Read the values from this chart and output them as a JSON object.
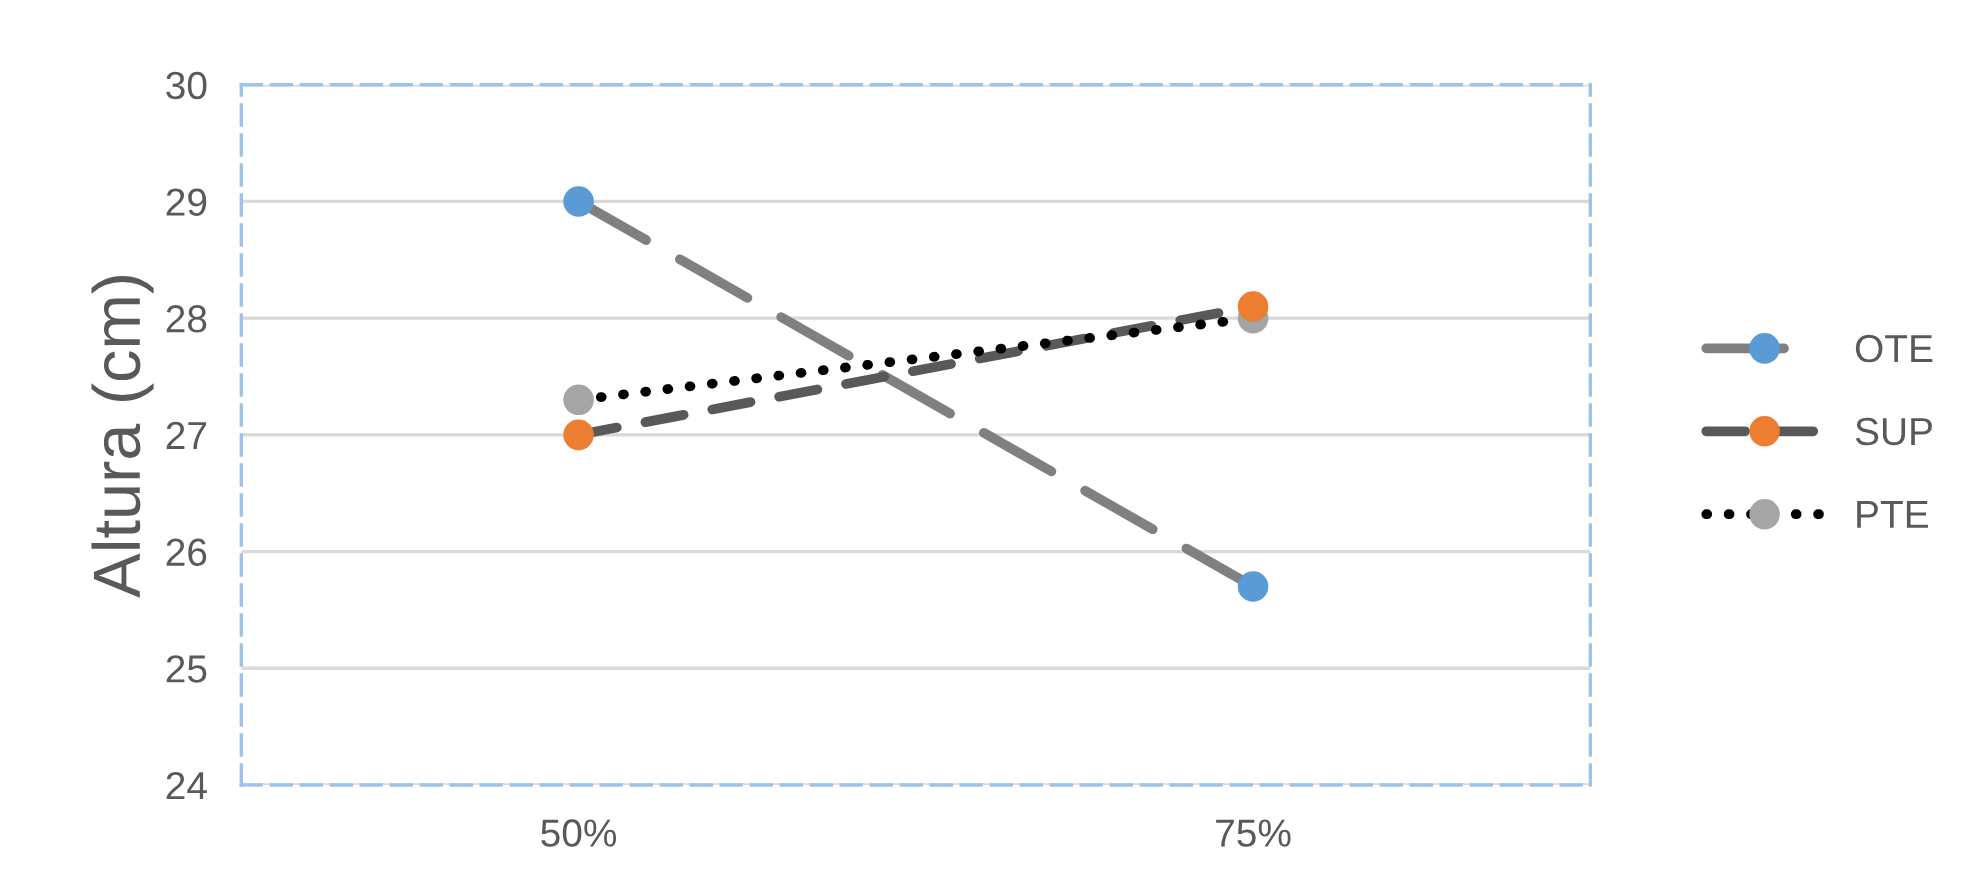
{
  "chart_data": {
    "type": "line",
    "ylabel": "Altura (cm)",
    "categories": [
      "50%",
      "75%"
    ],
    "series": [
      {
        "name": "OTE",
        "color": "#5b9bd5",
        "values": [
          29,
          25.7
        ],
        "line_style": "dashed"
      },
      {
        "name": "SUP",
        "color": "#ed7d31",
        "values": [
          27,
          28.1
        ],
        "line_style": "dashed"
      },
      {
        "name": "PTE",
        "color": "#a5a5a5",
        "values": [
          27.3,
          28.0
        ],
        "line_style": "dotted"
      }
    ],
    "ylim": [
      24,
      30
    ],
    "yticks": [
      24,
      25,
      26,
      27,
      28,
      29,
      30
    ],
    "grid": "y",
    "legend": "right",
    "marker": "circle"
  }
}
